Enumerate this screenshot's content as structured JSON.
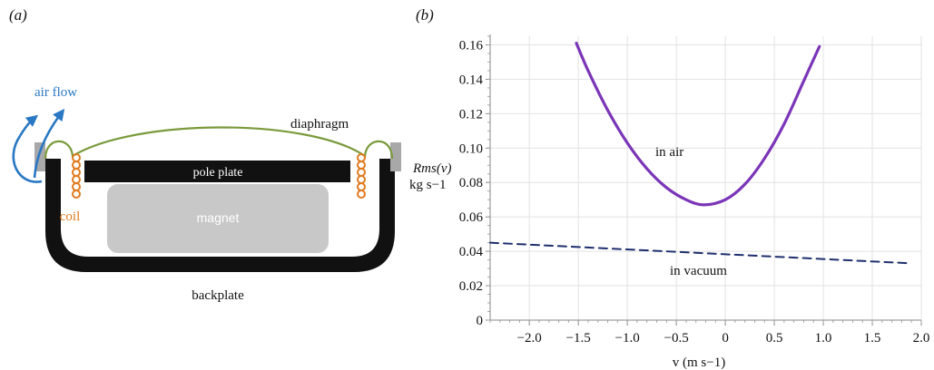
{
  "panel_a": {
    "label": "(a)",
    "labels": {
      "air_flow": "air flow",
      "diaphragm": "diaphragm",
      "pole_plate": "pole plate",
      "coil": "coil",
      "magnet": "magnet",
      "backplate": "backplate"
    },
    "colors": {
      "air_flow": "#2a78c4",
      "coil": "#e07a1f",
      "diaphragm": "#7a9a3c",
      "pole_plate": "#111111",
      "magnet": "#c8c8c8",
      "backplate": "#111111",
      "surround_block": "#a8a8a8"
    }
  },
  "panel_b": {
    "label": "(b)",
    "chart_data": {
      "type": "line",
      "title": "",
      "xlabel": "v (m s−1)",
      "ylabel_line1": "Rms(v)",
      "ylabel_line2": "kg s−1",
      "xlim": [
        -2.4,
        2.0
      ],
      "ylim": [
        0,
        0.165
      ],
      "x_ticks": [
        -2.0,
        -1.5,
        -1.0,
        -0.5,
        0,
        0.5,
        1.0,
        1.5,
        2.0
      ],
      "x_tick_labels": [
        "−2.0",
        "−1.5",
        "−1.0",
        "−0.5",
        "0",
        "0.5",
        "1.0",
        "1.5",
        "2.0"
      ],
      "y_ticks": [
        0,
        0.02,
        0.04,
        0.06,
        0.08,
        0.1,
        0.12,
        0.14,
        0.16
      ],
      "y_tick_labels": [
        "0",
        "0.02",
        "0.04",
        "0.06",
        "0.08",
        "0.10",
        "0.12",
        "0.14",
        "0.16"
      ],
      "grid": true,
      "series": [
        {
          "name": "in air",
          "color": "#7b35b8",
          "style": "solid",
          "x": [
            -1.52,
            -1.4,
            -1.2,
            -1.0,
            -0.8,
            -0.6,
            -0.4,
            -0.22,
            0.0,
            0.2,
            0.4,
            0.6,
            0.8,
            0.96
          ],
          "y": [
            0.161,
            0.145,
            0.122,
            0.103,
            0.088,
            0.077,
            0.07,
            0.067,
            0.07,
            0.079,
            0.094,
            0.114,
            0.139,
            0.159
          ]
        },
        {
          "name": "in vacuum",
          "color": "#1f2f6e",
          "style": "dashed",
          "x": [
            -2.4,
            1.9
          ],
          "y": [
            0.045,
            0.033
          ]
        }
      ],
      "annotations": [
        {
          "text": "in air",
          "series": "in air"
        },
        {
          "text": "in vacuum",
          "series": "in vacuum"
        }
      ]
    }
  }
}
